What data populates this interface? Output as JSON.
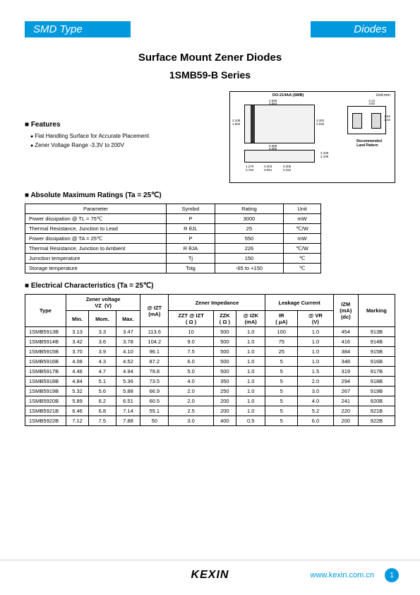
{
  "header": {
    "left": "SMD Type",
    "right": "Diodes"
  },
  "titles": {
    "main": "Surface Mount Zener Diodes",
    "sub": "1SMB59-B Series"
  },
  "features": {
    "heading": "Features",
    "items": [
      "Flat Handling Surface for Accurate Placement",
      "Zener Voltage Range -3.3V to 200V"
    ]
  },
  "diagram": {
    "pkg_label": "DO-214AA (SMB)",
    "unit_label": "Unit:mm",
    "pad_label": "Recommended\nLand Pattern",
    "dims": {
      "w1": "4.699",
      "w2": "4.064",
      "h1": "2.108",
      "h2": "1.803",
      "b1": "3.302",
      "b2": "2.032",
      "bot1": "5.588",
      "bot2": "5.080",
      "s1": "2.349",
      "s2": "2.108",
      "f1": "1.270",
      "f2": "0.762",
      "f3": "0.203",
      "f4": "0.051",
      "f5": "0.305",
      "f6": "0.152",
      "p1": "4.12",
      "p2": "3.82",
      "p3": "2.62",
      "p4": "2.32",
      "p5": "7.12",
      "p6": "6.82"
    }
  },
  "abs_max": {
    "heading": "Absolute Maximum Ratings (Ta = 25℃)",
    "headers": [
      "Parameter",
      "Symbol",
      "Rating",
      "Unit"
    ],
    "rows": [
      [
        "Power dissipation        @ TL = 75℃",
        "P",
        "3000",
        "mW"
      ],
      [
        "Thermal Resistance, Junction to Lead",
        "R θJL",
        "25",
        "℃/W"
      ],
      [
        "Power dissipation        @ TA = 25℃",
        "P",
        "550",
        "mW"
      ],
      [
        "Thermal Resistance, Junction to Ambient",
        "R θJA",
        "226",
        "℃/W"
      ],
      [
        "Jumction temperature",
        "Tj",
        "150",
        "℃"
      ],
      [
        "Storage temperature",
        "Tstg",
        "-65 to +150",
        "℃"
      ]
    ]
  },
  "elec": {
    "heading": "Electrical Characteristics (Ta = 25℃)",
    "group_headers": {
      "type": "Type",
      "zv": "Zener voltage\nVZ  (V)",
      "zi": "Zener Impedance",
      "lc": "Leakage Current",
      "izm": "IZM\n(mA)\n(dc)",
      "mark": "Marking"
    },
    "sub_headers": [
      "Min.",
      "Mom.",
      "Max.",
      "@ IZT\n(mA)",
      "ZZT @ IZT\n( Ω )",
      "ZZK\n( Ω )",
      "@ IZK\n(mA)",
      "IR\n( μA)",
      "@ VR\n(V)"
    ],
    "rows": [
      [
        "1SMB5913B",
        "3.13",
        "3.3",
        "3.47",
        "113.6",
        "10",
        "500",
        "1.0",
        "100",
        "1.0",
        "454",
        "913B"
      ],
      [
        "1SMB5914B",
        "3.42",
        "3.6",
        "3.78",
        "104.2",
        "9.0",
        "500",
        "1.0",
        "75",
        "1.0",
        "416",
        "914B"
      ],
      [
        "1SMB5915B",
        "3.70",
        "3.9",
        "4.10",
        "96.1",
        "7.5",
        "500",
        "1.0",
        "25",
        "1.0",
        "384",
        "915B"
      ],
      [
        "1SMB5916B",
        "4.08",
        "4.3",
        "4.52",
        "87.2",
        "6.0",
        "500",
        "1.0",
        "5",
        "1.0",
        "348",
        "916B"
      ],
      [
        "1SMB5917B",
        "4.46",
        "4.7",
        "4.94",
        "79.8",
        "5.0",
        "500",
        "1.0",
        "5",
        "1.5",
        "319",
        "917B"
      ],
      [
        "1SMB5918B",
        "4.84",
        "5.1",
        "5.36",
        "73.5",
        "4.0",
        "350",
        "1.0",
        "5",
        "2.0",
        "294",
        "918B"
      ],
      [
        "1SMB5919B",
        "5.32",
        "5.6",
        "5.88",
        "66.9",
        "2.0",
        "250",
        "1.0",
        "5",
        "3.0",
        "267",
        "919B"
      ],
      [
        "1SMB5920B",
        "5.89",
        "6.2",
        "6.51",
        "60.5",
        "2.0",
        "200",
        "1.0",
        "5",
        "4.0",
        "241",
        "920B"
      ],
      [
        "1SMB5921B",
        "6.46",
        "6.8",
        "7.14",
        "55.1",
        "2.5",
        "200",
        "1.0",
        "5",
        "5.2",
        "220",
        "921B"
      ],
      [
        "1SMB5922B",
        "7.12",
        "7.5",
        "7.88",
        "50",
        "3.0",
        "400",
        "0.5",
        "5",
        "6.0",
        "200",
        "922B"
      ]
    ]
  },
  "footer": {
    "logo": "KEXIN",
    "url": "www.kexin.com.cn",
    "page": "1"
  }
}
